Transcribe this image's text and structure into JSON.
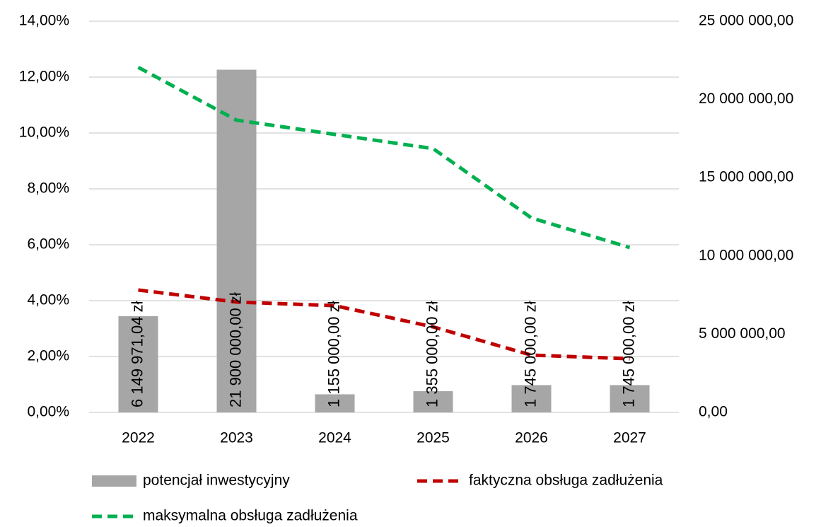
{
  "chart_data": {
    "type": "combo",
    "categories": [
      "2022",
      "2023",
      "2024",
      "2025",
      "2026",
      "2027"
    ],
    "series": [
      {
        "name": "potencjał inwestycyjny",
        "type": "bar",
        "axis": "y2",
        "color": "#a6a6a6",
        "values": [
          6149971.04,
          21900000,
          1155000,
          1355000,
          1745000,
          1745000
        ],
        "value_labels": [
          "6 149 971,04 zł",
          "21 900 000,00 zł",
          "1 155 000,00 zł",
          "1 355 000,00 zł",
          "1 745 000,00 zł",
          "1 745 000,00 zł"
        ]
      },
      {
        "name": "faktyczna obsługa zadłużenia",
        "type": "line",
        "dashed": true,
        "color": "#c00000",
        "values": [
          4.38,
          3.95,
          3.82,
          3.06,
          2.05,
          1.92
        ]
      },
      {
        "name": "maksymalna obsługa zadłużenia",
        "type": "line",
        "dashed": true,
        "color": "#00b050",
        "values": [
          12.35,
          10.46,
          9.95,
          9.44,
          6.96,
          5.9
        ]
      }
    ],
    "ylim": [
      0,
      14
    ],
    "yticks": [
      {
        "value": 0,
        "label": "0,00%"
      },
      {
        "value": 2,
        "label": "2,00%"
      },
      {
        "value": 4,
        "label": "4,00%"
      },
      {
        "value": 6,
        "label": "6,00%"
      },
      {
        "value": 8,
        "label": "8,00%"
      },
      {
        "value": 10,
        "label": "10,00%"
      },
      {
        "value": 12,
        "label": "12,00%"
      },
      {
        "value": 14,
        "label": "14,00%"
      }
    ],
    "y2lim": [
      0,
      25000000
    ],
    "y2ticks": [
      {
        "value": 0,
        "label": "0,00"
      },
      {
        "value": 5000000,
        "label": "5 000 000,00"
      },
      {
        "value": 10000000,
        "label": "10 000 000,00"
      },
      {
        "value": 15000000,
        "label": "15 000 000,00"
      },
      {
        "value": 20000000,
        "label": "20 000 000,00"
      },
      {
        "value": 25000000,
        "label": "25 000 000,00"
      }
    ],
    "grid": true
  }
}
